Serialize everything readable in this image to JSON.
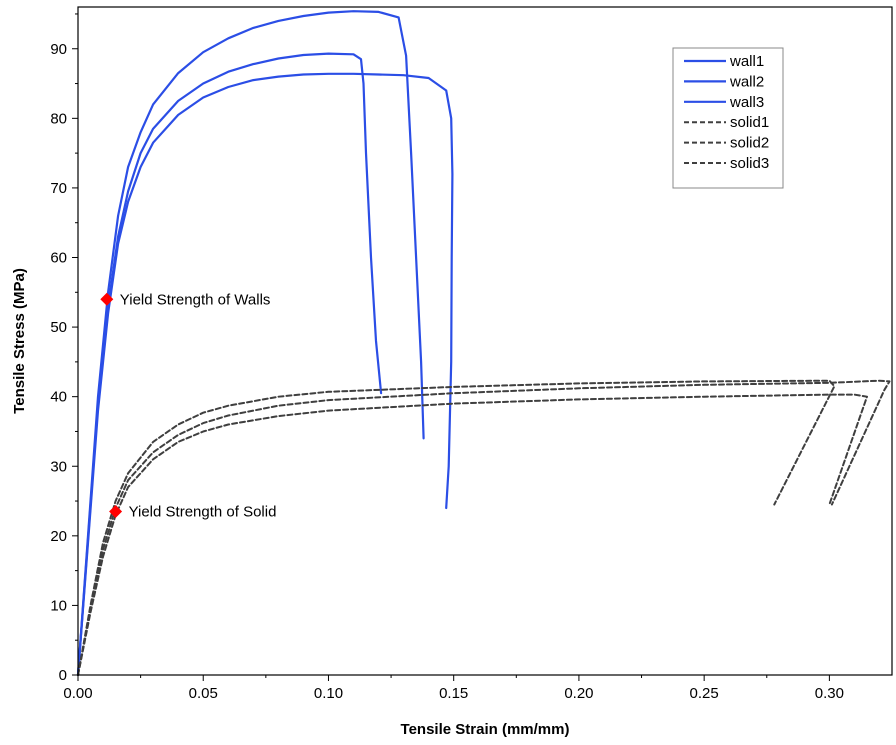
{
  "chart_data": {
    "type": "line",
    "xlabel": "Tensile Strain (mm/mm)",
    "ylabel": "Tensile Stress (MPa)",
    "xlim": [
      0,
      0.325
    ],
    "ylim": [
      0,
      96
    ],
    "x_ticks": [
      "0.00",
      "0.05",
      "0.10",
      "0.15",
      "0.20",
      "0.25",
      "0.30"
    ],
    "y_ticks": [
      "0",
      "10",
      "20",
      "30",
      "40",
      "50",
      "60",
      "70",
      "80",
      "90"
    ],
    "grid": false,
    "legend_position": "top-right",
    "colors": {
      "wall": "#2b4ee6",
      "solid": "#3f3f3f",
      "marker": "#ff0000"
    },
    "series": [
      {
        "name": "wall1",
        "style": "solid",
        "color": "#2b4ee6",
        "points": [
          [
            0,
            0
          ],
          [
            0.004,
            20
          ],
          [
            0.008,
            40
          ],
          [
            0.012,
            55
          ],
          [
            0.016,
            66
          ],
          [
            0.02,
            73
          ],
          [
            0.025,
            78
          ],
          [
            0.03,
            82
          ],
          [
            0.04,
            86.5
          ],
          [
            0.05,
            89.5
          ],
          [
            0.06,
            91.5
          ],
          [
            0.07,
            93
          ],
          [
            0.08,
            94
          ],
          [
            0.09,
            94.7
          ],
          [
            0.1,
            95.2
          ],
          [
            0.11,
            95.4
          ],
          [
            0.12,
            95.3
          ],
          [
            0.128,
            94.5
          ],
          [
            0.131,
            89
          ],
          [
            0.133,
            75
          ],
          [
            0.135,
            60
          ],
          [
            0.137,
            45
          ],
          [
            0.138,
            34
          ]
        ]
      },
      {
        "name": "wall2",
        "style": "solid",
        "color": "#2b4ee6",
        "points": [
          [
            0,
            0
          ],
          [
            0.004,
            19
          ],
          [
            0.008,
            38
          ],
          [
            0.012,
            52
          ],
          [
            0.016,
            62
          ],
          [
            0.02,
            68
          ],
          [
            0.025,
            73
          ],
          [
            0.03,
            76.5
          ],
          [
            0.04,
            80.5
          ],
          [
            0.05,
            83
          ],
          [
            0.06,
            84.5
          ],
          [
            0.07,
            85.5
          ],
          [
            0.08,
            86
          ],
          [
            0.09,
            86.3
          ],
          [
            0.1,
            86.4
          ],
          [
            0.11,
            86.4
          ],
          [
            0.12,
            86.3
          ],
          [
            0.13,
            86.2
          ],
          [
            0.14,
            85.8
          ],
          [
            0.147,
            84
          ],
          [
            0.149,
            80
          ],
          [
            0.1495,
            72
          ],
          [
            0.1492,
            60
          ],
          [
            0.149,
            45
          ],
          [
            0.148,
            30
          ],
          [
            0.147,
            24
          ]
        ]
      },
      {
        "name": "wall3",
        "style": "solid",
        "color": "#2b4ee6",
        "points": [
          [
            0,
            0
          ],
          [
            0.004,
            19.5
          ],
          [
            0.008,
            39
          ],
          [
            0.012,
            53
          ],
          [
            0.016,
            63
          ],
          [
            0.02,
            69.5
          ],
          [
            0.025,
            75
          ],
          [
            0.03,
            78.5
          ],
          [
            0.04,
            82.5
          ],
          [
            0.05,
            85
          ],
          [
            0.06,
            86.7
          ],
          [
            0.07,
            87.8
          ],
          [
            0.08,
            88.6
          ],
          [
            0.09,
            89.1
          ],
          [
            0.1,
            89.3
          ],
          [
            0.11,
            89.2
          ],
          [
            0.113,
            88.5
          ],
          [
            0.114,
            85
          ],
          [
            0.115,
            75
          ],
          [
            0.117,
            60
          ],
          [
            0.119,
            48
          ],
          [
            0.121,
            40.5
          ]
        ]
      },
      {
        "name": "solid1",
        "style": "dashed",
        "color": "#3f3f3f",
        "points": [
          [
            0,
            0
          ],
          [
            0.005,
            9
          ],
          [
            0.01,
            17
          ],
          [
            0.015,
            23
          ],
          [
            0.02,
            27
          ],
          [
            0.03,
            31
          ],
          [
            0.04,
            33.5
          ],
          [
            0.05,
            35
          ],
          [
            0.06,
            36
          ],
          [
            0.08,
            37.2
          ],
          [
            0.1,
            38
          ],
          [
            0.15,
            39
          ],
          [
            0.2,
            39.6
          ],
          [
            0.25,
            40
          ],
          [
            0.3,
            40.3
          ],
          [
            0.31,
            40.3
          ],
          [
            0.315,
            40
          ],
          [
            0.3,
            24.5
          ]
        ]
      },
      {
        "name": "solid2",
        "style": "dashed",
        "color": "#3f3f3f",
        "points": [
          [
            0,
            0
          ],
          [
            0.005,
            10
          ],
          [
            0.01,
            19
          ],
          [
            0.015,
            25
          ],
          [
            0.02,
            29
          ],
          [
            0.03,
            33.5
          ],
          [
            0.04,
            36
          ],
          [
            0.05,
            37.7
          ],
          [
            0.06,
            38.7
          ],
          [
            0.08,
            40
          ],
          [
            0.1,
            40.7
          ],
          [
            0.15,
            41.4
          ],
          [
            0.2,
            41.9
          ],
          [
            0.25,
            42.2
          ],
          [
            0.3,
            42.3
          ],
          [
            0.302,
            41.5
          ],
          [
            0.278,
            24.5
          ]
        ]
      },
      {
        "name": "solid3",
        "style": "dashed",
        "color": "#3f3f3f",
        "points": [
          [
            0,
            0
          ],
          [
            0.005,
            9.5
          ],
          [
            0.01,
            18
          ],
          [
            0.015,
            24
          ],
          [
            0.02,
            28
          ],
          [
            0.03,
            32
          ],
          [
            0.04,
            34.5
          ],
          [
            0.05,
            36.2
          ],
          [
            0.06,
            37.3
          ],
          [
            0.08,
            38.7
          ],
          [
            0.1,
            39.5
          ],
          [
            0.15,
            40.5
          ],
          [
            0.2,
            41.2
          ],
          [
            0.25,
            41.7
          ],
          [
            0.3,
            42
          ],
          [
            0.32,
            42.3
          ],
          [
            0.324,
            42.2
          ],
          [
            0.322,
            41
          ],
          [
            0.301,
            24.5
          ]
        ]
      }
    ],
    "annotations": [
      {
        "label": "Yield Strength of Walls",
        "x": 0.0115,
        "y": 54
      },
      {
        "label": "Yield Strength of Solid",
        "x": 0.015,
        "y": 23.5
      }
    ]
  }
}
